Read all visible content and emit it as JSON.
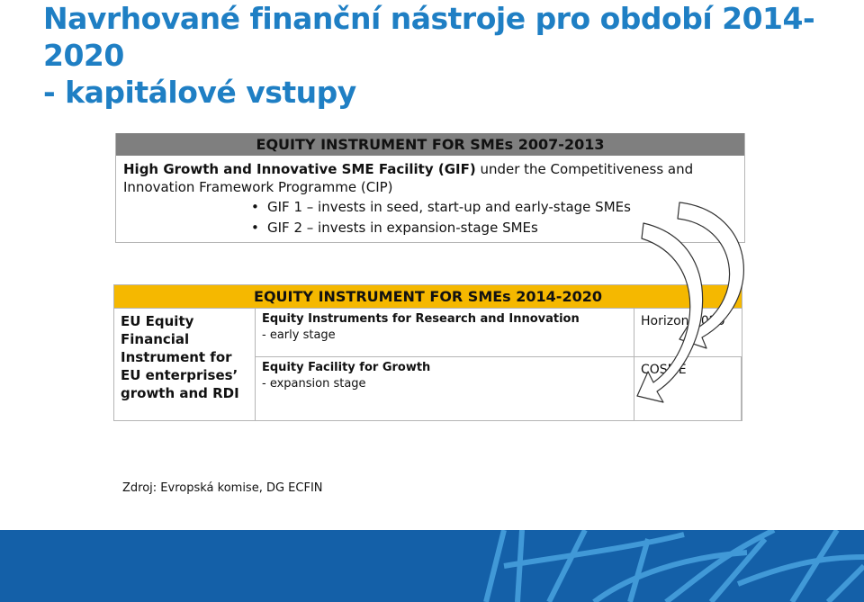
{
  "slide": {
    "title_line1": "Navrhované finanční nástroje pro období 2014-2020",
    "title_line2": "- kapitálové vstupy"
  },
  "table_2007": {
    "header": "EQUITY INSTRUMENT FOR SMEs 2007-2013",
    "desc_bold": "High Growth and Innovative SME Facility (GIF)",
    "desc_rest": " under the Competitiveness and Innovation Framework Programme (CIP)",
    "bullets": [
      "GIF 1 – invests in seed, start-up and early-stage SMEs",
      "GIF 2 – invests in expansion-stage SMEs"
    ]
  },
  "table_2014": {
    "header": "EQUITY INSTRUMENT FOR SMEs 2014-2020",
    "left_label": "EU Equity Financial Instrument for EU enterprises’ growth and RDI",
    "rows": [
      {
        "title": "Equity Instruments for Research and Innovation",
        "sub": "- early stage",
        "program": "Horizon 2020"
      },
      {
        "title": "Equity Facility for Growth",
        "sub": "- expansion stage",
        "program": "COSME"
      }
    ]
  },
  "source": "Zdroj: Evropská komise, DG ECFIN",
  "colors": {
    "title": "#1f7fc4",
    "header_2007": "#7f7f7f",
    "header_2014": "#f5b800",
    "footer": "#1460a8"
  }
}
